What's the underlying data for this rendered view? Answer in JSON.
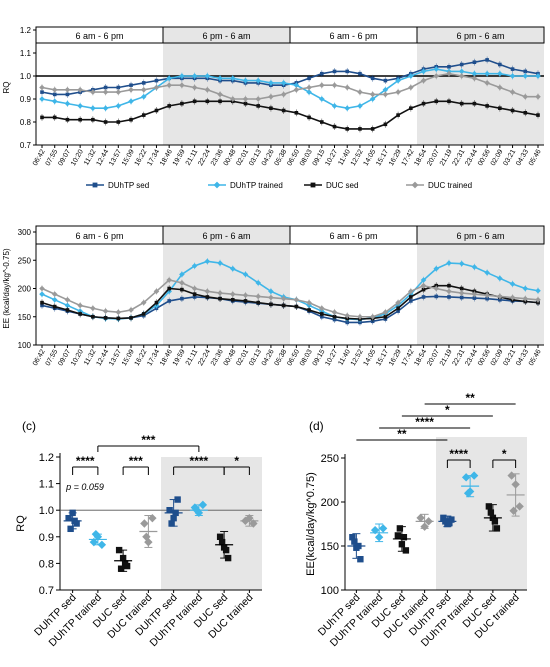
{
  "colors": {
    "DUhTP_sed": "#1f4e8c",
    "DUhTP_trained": "#3fb6e8",
    "DUC_sed": "#111111",
    "DUC_trained": "#9a9a9a",
    "shade": "#e6e6e6"
  },
  "time_ticks": [
    "06:42",
    "07:55",
    "09:07",
    "10:20",
    "11:32",
    "12:44",
    "13:57",
    "15:09",
    "16:22",
    "17:34",
    "18:46",
    "19:59",
    "21:11",
    "22:24",
    "23:36",
    "00:48",
    "02:01",
    "03:13",
    "04:26",
    "05:38",
    "06:50",
    "08:03",
    "09:15",
    "10:27",
    "11:40",
    "12:52",
    "14:05",
    "15:17",
    "16:29",
    "17:42",
    "18:54",
    "20:07",
    "21:19",
    "22:31",
    "23:44",
    "00:56",
    "02:09",
    "03:21",
    "04:33",
    "05:46"
  ],
  "period_labels": [
    "6 am - 6 pm",
    "6 pm - 6 am",
    "6 am - 6 pm",
    "6 pm - 6 am"
  ],
  "legend": [
    "DUhTP sed",
    "DUhTP trained",
    "DUC sed",
    "DUC trained"
  ],
  "chart_data": [
    {
      "panel": "(a)",
      "type": "line",
      "ylabel": "RQ",
      "ylim": [
        0.7,
        1.2
      ],
      "yticks": [
        "0.7",
        "0.8",
        "0.9",
        "1.0",
        "1.1",
        "1.2"
      ],
      "reference_line": 1.0,
      "series": [
        {
          "name": "DUhTP sed",
          "values": [
            0.93,
            0.92,
            0.92,
            0.93,
            0.94,
            0.95,
            0.95,
            0.96,
            0.97,
            0.98,
            0.99,
            0.99,
            0.99,
            0.99,
            0.98,
            0.98,
            0.97,
            0.97,
            0.96,
            0.96,
            0.97,
            0.99,
            1.01,
            1.02,
            1.02,
            1.01,
            0.99,
            0.98,
            0.99,
            1.01,
            1.03,
            1.04,
            1.04,
            1.05,
            1.06,
            1.07,
            1.05,
            1.03,
            1.02,
            1.01
          ]
        },
        {
          "name": "DUhTP trained",
          "values": [
            0.9,
            0.89,
            0.88,
            0.87,
            0.86,
            0.86,
            0.87,
            0.89,
            0.91,
            0.95,
            0.99,
            1.0,
            1.0,
            1.0,
            0.99,
            0.99,
            0.98,
            0.98,
            0.97,
            0.97,
            0.96,
            0.93,
            0.9,
            0.87,
            0.86,
            0.87,
            0.9,
            0.94,
            0.98,
            1.0,
            1.02,
            1.03,
            1.02,
            1.02,
            1.01,
            1.01,
            1.01,
            1.0,
            1.0,
            1.0
          ]
        },
        {
          "name": "DUC sed",
          "values": [
            0.82,
            0.82,
            0.81,
            0.81,
            0.81,
            0.8,
            0.8,
            0.81,
            0.83,
            0.85,
            0.87,
            0.88,
            0.89,
            0.89,
            0.89,
            0.89,
            0.88,
            0.87,
            0.86,
            0.85,
            0.84,
            0.82,
            0.8,
            0.78,
            0.77,
            0.77,
            0.77,
            0.79,
            0.83,
            0.86,
            0.88,
            0.89,
            0.89,
            0.88,
            0.88,
            0.87,
            0.86,
            0.85,
            0.84,
            0.83
          ]
        },
        {
          "name": "DUC trained",
          "values": [
            0.95,
            0.94,
            0.94,
            0.94,
            0.93,
            0.93,
            0.93,
            0.94,
            0.94,
            0.95,
            0.96,
            0.96,
            0.95,
            0.94,
            0.92,
            0.9,
            0.9,
            0.9,
            0.91,
            0.92,
            0.94,
            0.95,
            0.96,
            0.96,
            0.95,
            0.93,
            0.92,
            0.92,
            0.93,
            0.95,
            0.98,
            1.0,
            1.01,
            1.0,
            0.99,
            0.97,
            0.95,
            0.93,
            0.91,
            0.91
          ]
        }
      ]
    },
    {
      "panel": "(b)",
      "type": "line",
      "ylabel": "EE (kcal/day/kg^-0.75)",
      "ylim": [
        100,
        300
      ],
      "yticks": [
        "100",
        "150",
        "200",
        "250",
        "300"
      ],
      "series": [
        {
          "name": "DUhTP sed",
          "values": [
            170,
            165,
            160,
            155,
            150,
            148,
            147,
            148,
            152,
            165,
            178,
            182,
            185,
            184,
            182,
            178,
            176,
            174,
            172,
            170,
            168,
            160,
            150,
            145,
            140,
            140,
            142,
            146,
            160,
            178,
            185,
            186,
            185,
            184,
            183,
            182,
            180,
            178,
            177,
            175
          ]
        },
        {
          "name": "DUhTP trained",
          "values": [
            190,
            180,
            170,
            160,
            150,
            147,
            146,
            148,
            155,
            170,
            195,
            225,
            240,
            248,
            245,
            235,
            225,
            210,
            195,
            185,
            180,
            170,
            160,
            150,
            146,
            145,
            148,
            155,
            170,
            190,
            215,
            235,
            245,
            244,
            238,
            228,
            218,
            208,
            200,
            196
          ]
        },
        {
          "name": "DUC sed",
          "values": [
            175,
            168,
            162,
            155,
            150,
            148,
            147,
            148,
            155,
            175,
            200,
            198,
            190,
            185,
            182,
            180,
            178,
            175,
            172,
            170,
            168,
            162,
            155,
            150,
            147,
            146,
            147,
            150,
            165,
            185,
            198,
            205,
            205,
            200,
            195,
            190,
            185,
            180,
            177,
            175
          ]
        },
        {
          "name": "DUC trained",
          "values": [
            200,
            190,
            180,
            170,
            165,
            160,
            158,
            162,
            175,
            195,
            215,
            210,
            200,
            195,
            192,
            190,
            188,
            186,
            184,
            182,
            180,
            175,
            165,
            158,
            152,
            150,
            150,
            158,
            175,
            195,
            205,
            200,
            195,
            192,
            190,
            188,
            186,
            184,
            182,
            180
          ]
        }
      ]
    },
    {
      "panel": "(c)",
      "type": "scatter",
      "ylabel": "RQ",
      "ylim": [
        0.7,
        1.2
      ],
      "yticks": [
        "0.7",
        "0.8",
        "0.9",
        "1.0",
        "1.1",
        "1.2"
      ],
      "categories": [
        "DUhTP sed",
        "DUhTP trained",
        "DUC sed",
        "DUC trained",
        "DUhTP sed",
        "DUhTP trained",
        "DUC sed",
        "DUC trained"
      ],
      "means": [
        0.96,
        0.89,
        0.81,
        0.92,
        0.99,
        1.0,
        0.87,
        0.96
      ],
      "sd": [
        0.03,
        0.02,
        0.04,
        0.06,
        0.05,
        0.02,
        0.05,
        0.02
      ],
      "points": [
        [
          0.97,
          0.99,
          0.95,
          0.93,
          0.96
        ],
        [
          0.88,
          0.9,
          0.87,
          0.91
        ],
        [
          0.85,
          0.82,
          0.79,
          0.78,
          0.8
        ],
        [
          0.95,
          0.88,
          0.97,
          0.9
        ],
        [
          1.0,
          0.97,
          1.04,
          0.95,
          0.99
        ],
        [
          1.01,
          0.99,
          1.02,
          1.0
        ],
        [
          0.9,
          0.86,
          0.82,
          0.88,
          0.85
        ],
        [
          0.96,
          0.97,
          0.95
        ]
      ],
      "annotations": {
        "sig": [
          "****",
          "***",
          "***",
          "****",
          "*"
        ],
        "p_note": "p = 0.059"
      }
    },
    {
      "panel": "(d)",
      "type": "scatter",
      "ylabel": "EE(kcal/day/kg^0.75)",
      "ylim": [
        100,
        250
      ],
      "yticks": [
        "100",
        "150",
        "200",
        "250"
      ],
      "categories": [
        "DUhTP sed",
        "DUhTP trained",
        "DUC sed",
        "DUC trained",
        "DUhTP sed",
        "DUhTP trained",
        "DUC sed",
        "DUC trained"
      ],
      "means": [
        150,
        165,
        158,
        178,
        178,
        218,
        182,
        208
      ],
      "sd": [
        14,
        10,
        14,
        8,
        6,
        12,
        15,
        24
      ],
      "points": [
        [
          160,
          148,
          135,
          155,
          150
        ],
        [
          168,
          160,
          170
        ],
        [
          162,
          152,
          145,
          170,
          160
        ],
        [
          182,
          172,
          178
        ],
        [
          182,
          175,
          180,
          178,
          176
        ],
        [
          228,
          212,
          230,
          210
        ],
        [
          195,
          182,
          170,
          188,
          178
        ],
        [
          230,
          220,
          195,
          190
        ]
      ],
      "annotations": {
        "sig": [
          "**",
          "****",
          "*",
          "**",
          "****",
          "*"
        ]
      }
    }
  ]
}
